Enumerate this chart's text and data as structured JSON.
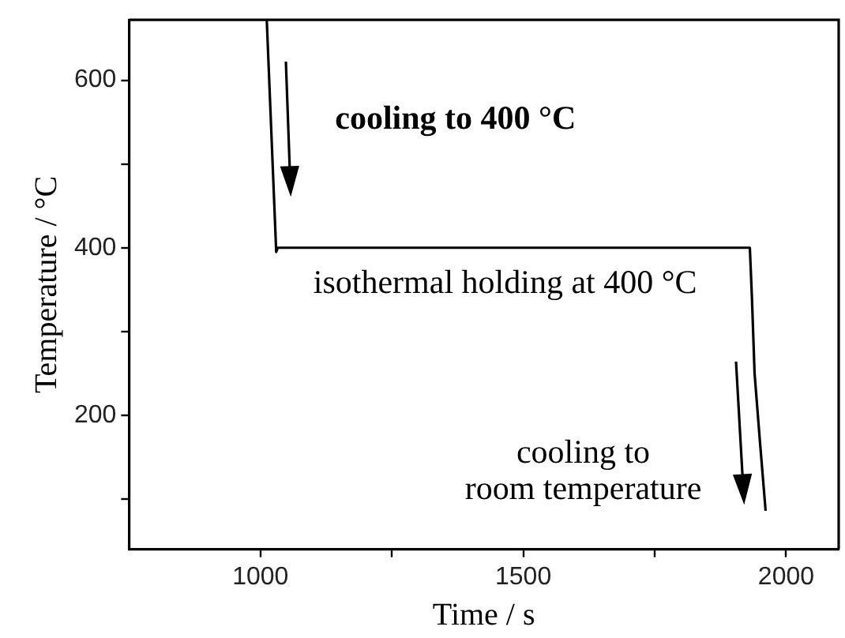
{
  "chart_data": {
    "type": "line",
    "xlabel": "Time / s",
    "ylabel": "Temperature / °C",
    "x": [
      1012,
      1030,
      1033,
      1040,
      1931,
      1935,
      1940,
      1950,
      1961
    ],
    "series": [
      {
        "color": "#000000",
        "values": [
          672,
          395,
          400,
          400,
          400,
          340,
          250,
          170,
          86
        ]
      }
    ],
    "xlim": [
      750,
      2100
    ],
    "ylim": [
      40,
      672
    ],
    "xticks": [
      1000,
      {
        "value": 1250,
        "label": null
      },
      1500,
      {
        "value": 1750,
        "label": null
      },
      2000
    ],
    "yticks": [
      {
        "value": 100,
        "label": null
      },
      200,
      {
        "value": 300,
        "label": null
      },
      400,
      {
        "value": 500,
        "label": null
      },
      600
    ],
    "grid": false,
    "legend": false,
    "marker": "none",
    "line_style": "solid",
    "annotations": [
      "cooling to 400 °C",
      "isothermal holding at 400 °C",
      "cooling to\nroom temperature"
    ]
  }
}
